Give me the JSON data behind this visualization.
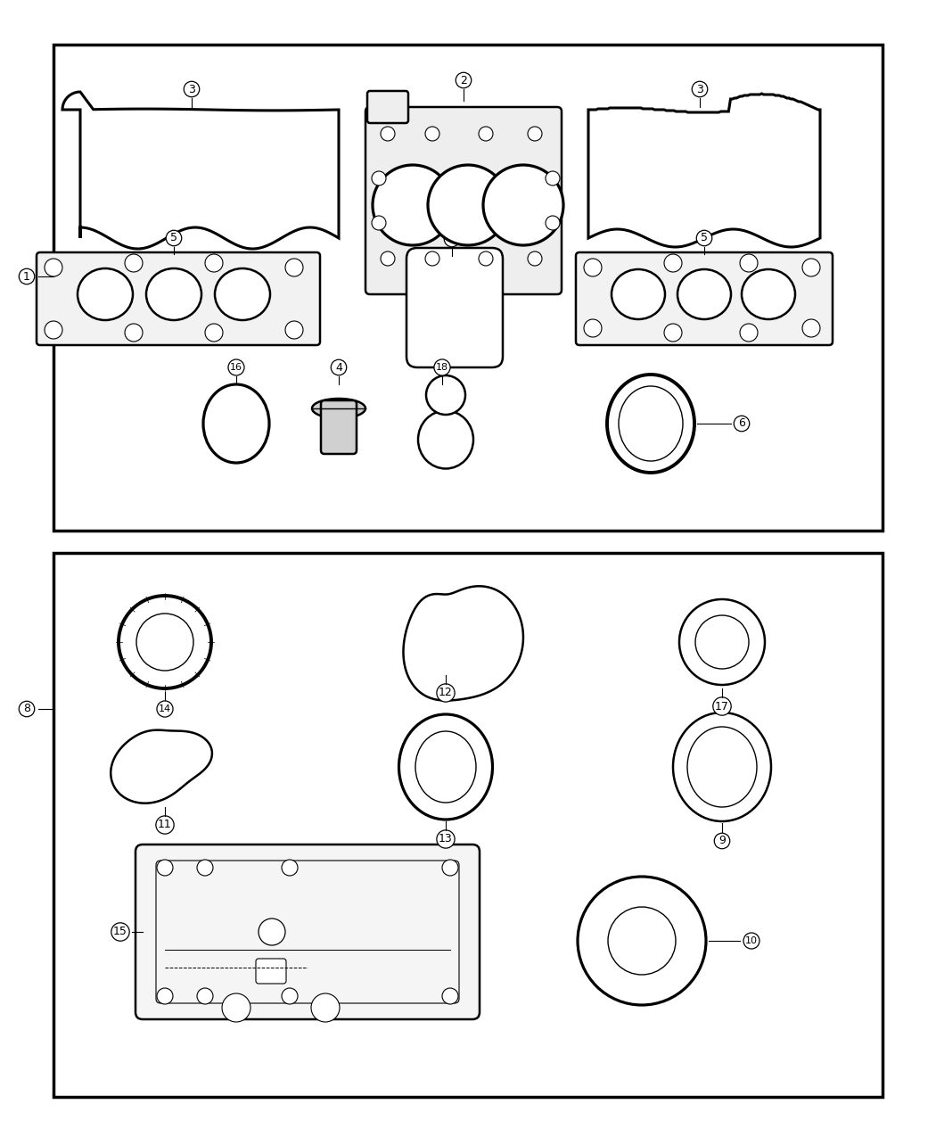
{
  "bg_color": "#ffffff",
  "line_color": "#000000",
  "lw_thin": 1.0,
  "lw_med": 1.8,
  "lw_thick": 2.2
}
